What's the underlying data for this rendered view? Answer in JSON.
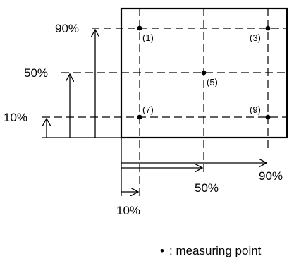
{
  "diagram": {
    "y_labels": [
      "90%",
      "50%",
      "10%"
    ],
    "x_labels": [
      "90%",
      "50%",
      "10%"
    ],
    "points": [
      {
        "label": "(1)"
      },
      {
        "label": "(3)"
      },
      {
        "label": "(5)"
      },
      {
        "label": "(7)"
      },
      {
        "label": "(9)"
      }
    ],
    "legend": {
      "symbol": "•",
      "text": ": measuring point"
    }
  }
}
